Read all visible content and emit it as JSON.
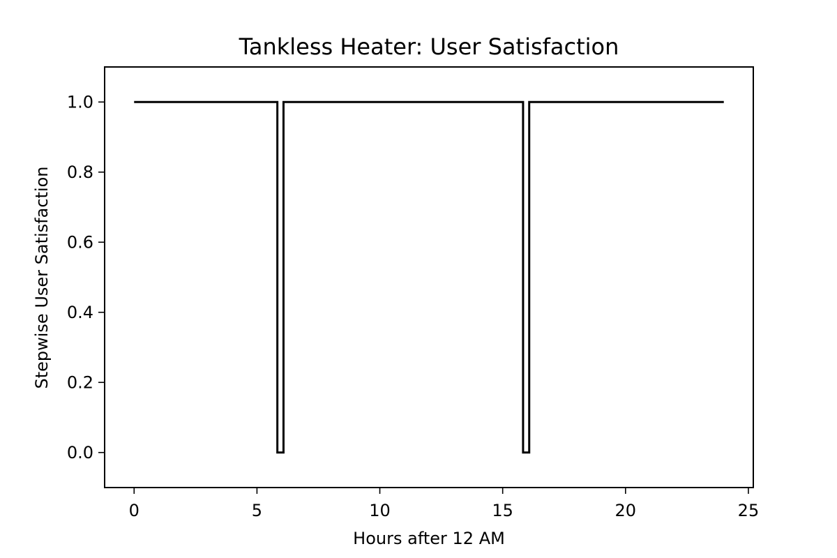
{
  "chart_data": {
    "type": "line",
    "title": "Tankless Heater: User Satisfaction",
    "xlabel": "Hours after 12 AM",
    "ylabel": "Stepwise User Satisfaction",
    "xlim": [
      -1.2,
      25.2
    ],
    "ylim": [
      -0.1,
      1.1
    ],
    "x_ticks": [
      0,
      5,
      10,
      15,
      20,
      25
    ],
    "x_tick_labels": [
      "0",
      "5",
      "10",
      "15",
      "20",
      "25"
    ],
    "y_ticks": [
      0.0,
      0.2,
      0.4,
      0.6,
      0.8,
      1.0
    ],
    "y_tick_labels": [
      "0.0",
      "0.2",
      "0.4",
      "0.6",
      "0.8",
      "1.0"
    ],
    "grid": false,
    "line_color": "#000000",
    "series": [
      {
        "x": [
          0,
          5.83,
          5.83,
          6.08,
          6.08,
          15.83,
          15.83,
          16.08,
          16.08,
          24
        ],
        "y": [
          1,
          1,
          0,
          0,
          1,
          1,
          0,
          0,
          1,
          1
        ]
      }
    ]
  }
}
